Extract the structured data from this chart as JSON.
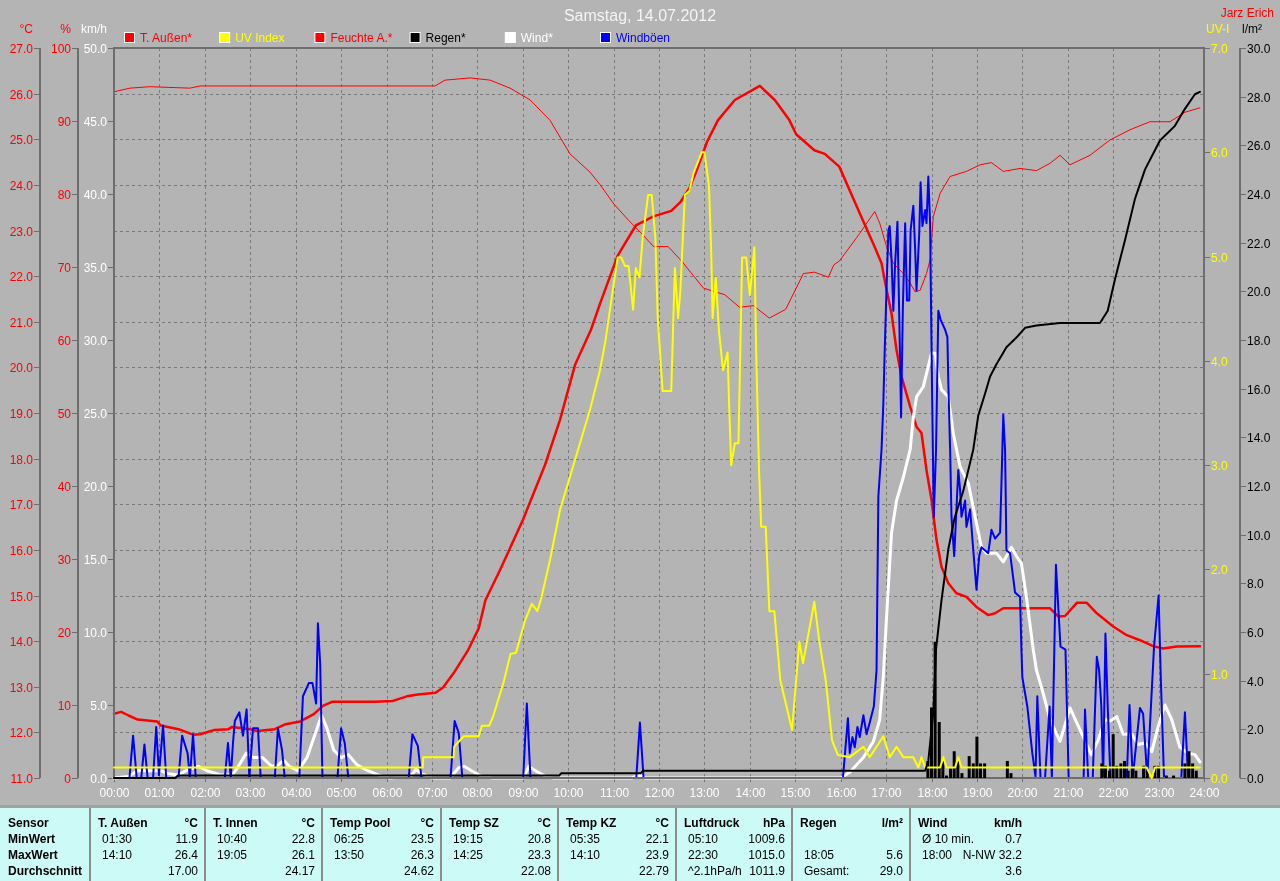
{
  "chart_data": [
    {
      "type": "line",
      "title": "Samstag, 14.07.2012",
      "annotations": [
        "Jarz Erich"
      ],
      "ylabel": "°C",
      "y2label": "%",
      "y3label": "km/h",
      "xlim": [
        0,
        24
      ],
      "xticks": [
        {
          "value": 0,
          "label": "00:00"
        },
        {
          "value": 1,
          "label": "01:00"
        },
        {
          "value": 2,
          "label": "02:00"
        },
        {
          "value": 3,
          "label": "03:00"
        },
        {
          "value": 4,
          "label": "04:00"
        },
        {
          "value": 5,
          "label": "05:00"
        },
        {
          "value": 6,
          "label": "06:00"
        },
        {
          "value": 7,
          "label": "07:00"
        },
        {
          "value": 8,
          "label": "08:00"
        },
        {
          "value": 9,
          "label": "09:00"
        },
        {
          "value": 10,
          "label": "10:00"
        },
        {
          "value": 11,
          "label": "11:00"
        },
        {
          "value": 12,
          "label": "12:00"
        },
        {
          "value": 13,
          "label": "13:00"
        },
        {
          "value": 14,
          "label": "14:00"
        },
        {
          "value": 15,
          "label": "15:00"
        },
        {
          "value": 16,
          "label": "16:00"
        },
        {
          "value": 17,
          "label": "17:00"
        },
        {
          "value": 18,
          "label": "18:00"
        },
        {
          "value": 19,
          "label": "19:00"
        },
        {
          "value": 20,
          "label": "20:00"
        },
        {
          "value": 21,
          "label": "21:00"
        },
        {
          "value": 22,
          "label": "22:00"
        },
        {
          "value": 23,
          "label": "23:00"
        },
        {
          "value": 24,
          "label": "24:00"
        }
      ],
      "ylim": [
        11,
        27
      ],
      "yticks": [
        {
          "value": 11,
          "label": "11.0"
        },
        {
          "value": 12,
          "label": "12.0"
        },
        {
          "value": 13,
          "label": "13.0"
        },
        {
          "value": 14,
          "label": "14.0"
        },
        {
          "value": 15,
          "label": "15.0"
        },
        {
          "value": 16,
          "label": "16.0"
        },
        {
          "value": 17,
          "label": "17.0"
        },
        {
          "value": 18,
          "label": "18.0"
        },
        {
          "value": 19,
          "label": "19.0"
        },
        {
          "value": 20,
          "label": "20.0"
        },
        {
          "value": 21,
          "label": "21.0"
        },
        {
          "value": 22,
          "label": "22.0"
        },
        {
          "value": 23,
          "label": "23.0"
        },
        {
          "value": 24,
          "label": "24.0"
        },
        {
          "value": 25,
          "label": "25.0"
        },
        {
          "value": 26,
          "label": "26.0"
        },
        {
          "value": 27,
          "label": "27.0"
        }
      ],
      "y2lim": [
        0,
        100
      ],
      "y2ticks": [
        0,
        10,
        20,
        30,
        40,
        50,
        60,
        70,
        80,
        90,
        100
      ],
      "y3lim": [
        0,
        50
      ],
      "y3ticks": [
        {
          "value": 0,
          "label": "0.0"
        },
        {
          "value": 5,
          "label": "5.0"
        },
        {
          "value": 10,
          "label": "10.0"
        },
        {
          "value": 15,
          "label": "15.0"
        },
        {
          "value": 20,
          "label": "20.0"
        },
        {
          "value": 25,
          "label": "25.0"
        },
        {
          "value": 30,
          "label": "30.0"
        },
        {
          "value": 35,
          "label": "35.0"
        },
        {
          "value": 40,
          "label": "40.0"
        },
        {
          "value": 45,
          "label": "45.0"
        },
        {
          "value": 50,
          "label": "50.0"
        }
      ],
      "grid": true,
      "legend": "top",
      "series": [
        {
          "name": "T. Außen*",
          "color": "#ff0000",
          "x": [
            0,
            0.16,
            0.32,
            0.52,
            0.95,
            1.03,
            1.42,
            1.74,
            1.89,
            2.2,
            2.52,
            2.6,
            3.0,
            3.15,
            3.54,
            3.78,
            4.1,
            4.4,
            4.6,
            4.8,
            5.35,
            5.74,
            6.14,
            6.45,
            6.69,
            7.08,
            7.24,
            7.48,
            7.8,
            8.03,
            8.18,
            8.5,
            9.0,
            9.49,
            9.82,
            10.15,
            10.5,
            10.7,
            11.09,
            11.49,
            11.88,
            12.27,
            12.47,
            12.67,
            12.82,
            13.06,
            13.3,
            13.67,
            14.22,
            14.55,
            14.87,
            15.02,
            15.42,
            15.65,
            15.97,
            16.42,
            16.75,
            16.9,
            17.01,
            17.12,
            17.23,
            17.34,
            17.53,
            17.67,
            17.78,
            17.89,
            18.0,
            18.11,
            18.22,
            18.37,
            18.55,
            18.77,
            18.99,
            19.25,
            19.4,
            19.58,
            19.95,
            20.61,
            20.79,
            20.94,
            21.2,
            21.42,
            21.64,
            22.0,
            22.3,
            22.59,
            22.88,
            23.1,
            23.4,
            23.91
          ],
          "values": [
            12.41,
            12.45,
            12.37,
            12.28,
            12.24,
            12.15,
            12.07,
            11.95,
            11.96,
            12.05,
            12.07,
            12.12,
            12.07,
            12.03,
            12.07,
            12.18,
            12.24,
            12.4,
            12.58,
            12.67,
            12.67,
            12.67,
            12.69,
            12.79,
            12.83,
            12.87,
            12.98,
            13.3,
            13.81,
            14.28,
            14.9,
            15.56,
            16.65,
            17.86,
            18.85,
            20.05,
            20.82,
            21.39,
            22.45,
            23.11,
            23.31,
            23.43,
            23.62,
            23.93,
            24.29,
            24.95,
            25.42,
            25.86,
            26.17,
            25.86,
            25.42,
            25.11,
            24.76,
            24.68,
            24.4,
            23.38,
            22.64,
            22.28,
            21.7,
            21.18,
            20.38,
            19.8,
            19.14,
            18.7,
            18.56,
            17.75,
            17.1,
            16.22,
            15.63,
            15.27,
            15.05,
            14.97,
            14.75,
            14.57,
            14.61,
            14.72,
            14.72,
            14.72,
            14.54,
            14.55,
            14.84,
            14.84,
            14.61,
            14.32,
            14.13,
            14.02,
            13.89,
            13.84,
            13.88,
            13.89
          ]
        },
        {
          "name": "Feuchte A.*",
          "color": "#ff0000",
          "axis": "y2",
          "x": [
            0,
            0.35,
            0.79,
            1.67,
            1.89,
            7.07,
            7.29,
            7.84,
            8.28,
            8.72,
            9.16,
            9.6,
            10.04,
            10.48,
            10.7,
            11.01,
            11.33,
            11.6,
            11.88,
            12.2,
            12.5,
            12.98,
            13.45,
            13.77,
            14.08,
            14.43,
            14.79,
            15.18,
            15.42,
            15.73,
            15.85,
            15.97,
            16.42,
            16.75,
            16.86,
            17.01,
            17.16,
            17.38,
            17.53,
            17.64,
            17.75,
            17.89,
            17.97,
            18.04,
            18.19,
            18.41,
            18.77,
            19.07,
            19.32,
            19.58,
            19.95,
            20.31,
            20.61,
            20.83,
            21.05,
            21.49,
            21.93,
            22.37,
            22.81,
            23.25,
            23.58,
            23.91
          ],
          "values": [
            94.0,
            94.5,
            94.7,
            94.5,
            94.8,
            94.8,
            95.6,
            95.9,
            95.6,
            94.5,
            92.9,
            90.1,
            85.5,
            83.0,
            81.3,
            78.6,
            76.4,
            74.7,
            72.8,
            72.8,
            70.8,
            67.1,
            66.2,
            64.5,
            64.7,
            63.0,
            64.2,
            69.1,
            69.3,
            68.6,
            70.3,
            70.8,
            74.6,
            77.6,
            76.0,
            72.8,
            70.5,
            69.1,
            67.8,
            66.6,
            66.8,
            69.1,
            71.0,
            76.9,
            80.1,
            82.4,
            83.1,
            84.0,
            84.3,
            83.1,
            83.5,
            83.2,
            84.2,
            85.3,
            84.0,
            85.3,
            87.4,
            88.8,
            89.9,
            89.9,
            91.2,
            91.8
          ]
        },
        {
          "name": "Wind*",
          "color": "#ffffff",
          "axis": "y3",
          "x": [
            0,
            0.32,
            0.52,
            1.03,
            1.19,
            1.42,
            1.58,
            1.85,
            2.05,
            2.36,
            2.6,
            2.72,
            2.91,
            3.07,
            3.27,
            3.47,
            3.62,
            3.74,
            3.86,
            4.05,
            4.25,
            4.45,
            4.57,
            4.69,
            4.84,
            5.0,
            5.16,
            5.35,
            5.59,
            5.83,
            6.06,
            6.53,
            6.65,
            6.77,
            7.0,
            7.4,
            7.59,
            7.71,
            7.87,
            8.1,
            8.34,
            9.02,
            9.13,
            9.28,
            9.51,
            9.68,
            11.4,
            11.55,
            11.7,
            16.0,
            16.2,
            16.5,
            16.72,
            16.86,
            16.94,
            17.01,
            17.12,
            17.23,
            17.38,
            17.53,
            17.6,
            17.67,
            17.82,
            17.89,
            18.0,
            18.08,
            18.15,
            18.22,
            18.37,
            18.48,
            18.63,
            18.81,
            18.96,
            19.1,
            19.21,
            19.43,
            19.58,
            19.76,
            19.87,
            19.98,
            20.09,
            20.24,
            20.31,
            20.46,
            20.61,
            20.83,
            21.05,
            21.27,
            21.52,
            21.67,
            21.82,
            21.93,
            22.08,
            22.22,
            22.41,
            22.55,
            22.7,
            22.85,
            22.99,
            23.14,
            23.29,
            23.47,
            23.65,
            23.8,
            23.91
          ],
          "values": [
            0,
            0.1,
            0.5,
            0.5,
            0.3,
            0.2,
            0.5,
            0.8,
            0.5,
            0.2,
            0.2,
            0.7,
            1.7,
            1.4,
            1.4,
            0.8,
            0.9,
            1.2,
            0.8,
            0.5,
            1.4,
            3.2,
            4.3,
            3.4,
            1.9,
            1.4,
            1.6,
            0.9,
            0.5,
            0.2,
            0,
            0.1,
            0.6,
            0.3,
            0,
            0,
            0.7,
            0.8,
            0.5,
            0.1,
            0,
            0,
            0.8,
            0.5,
            0.1,
            0,
            0,
            0.2,
            0,
            0,
            0.4,
            1.4,
            2.5,
            4.0,
            7.0,
            11.0,
            16.8,
            19.0,
            20.6,
            22.5,
            24.7,
            26.1,
            26.8,
            27.7,
            29.1,
            29.1,
            27.5,
            26.6,
            26.1,
            23.6,
            21.3,
            20.2,
            17.9,
            15.8,
            15.4,
            15.4,
            14.8,
            15.8,
            15.2,
            14.7,
            12.4,
            8.8,
            7.4,
            5.8,
            4.0,
            2.5,
            4.8,
            3.3,
            1.6,
            2.6,
            4.0,
            3.9,
            4.2,
            3.0,
            3.0,
            2.3,
            2.4,
            1.8,
            3.5,
            5.0,
            4.0,
            2.1,
            1.7,
            1.6,
            1.1
          ]
        },
        {
          "name": "Windböen",
          "color": "#0000ff",
          "axis": "y3",
          "x": [
            0,
            0.34,
            0.42,
            0.5,
            0.6,
            0.67,
            0.74,
            0.86,
            0.93,
            0.99,
            1.08,
            1.15,
            1.42,
            1.5,
            1.62,
            1.67,
            1.74,
            1.8,
            2.44,
            2.51,
            2.57,
            2.62,
            2.66,
            2.76,
            2.84,
            2.92,
            2.98,
            3.06,
            3.17,
            3.23,
            3.54,
            3.61,
            3.7,
            3.76,
            4.08,
            4.16,
            4.29,
            4.37,
            4.45,
            4.49,
            4.54,
            4.59,
            4.92,
            5.0,
            5.08,
            5.16,
            6.49,
            6.57,
            6.69,
            6.77,
            7.41,
            7.5,
            7.59,
            7.67,
            9.01,
            9.09,
            9.17,
            11.5,
            11.58,
            11.66,
            16.05,
            16.16,
            16.2,
            16.26,
            16.31,
            16.37,
            16.42,
            16.5,
            16.57,
            16.64,
            16.73,
            16.79,
            16.83,
            16.9,
            16.94,
            16.97,
            17.0,
            17.05,
            17.08,
            17.12,
            17.16,
            17.2,
            17.25,
            17.29,
            17.33,
            17.37,
            17.42,
            17.46,
            17.51,
            17.54,
            17.6,
            17.64,
            17.67,
            17.73,
            17.76,
            17.8,
            17.86,
            17.89,
            17.93,
            17.97,
            17.99,
            18.01,
            18.05,
            18.1,
            18.15,
            18.2,
            18.3,
            18.35,
            18.37,
            18.41,
            18.44,
            18.5,
            18.59,
            18.63,
            18.66,
            18.74,
            18.77,
            18.85,
            18.92,
            18.99,
            19.05,
            19.1,
            19.25,
            19.32,
            19.4,
            19.51,
            19.55,
            19.58,
            19.62,
            19.65,
            19.73,
            19.84,
            19.95,
            19.98,
            20.0,
            20.11,
            20.22,
            20.29,
            20.33,
            20.4,
            20.5,
            20.6,
            20.65,
            20.74,
            20.84,
            20.95,
            21.02,
            21.35,
            21.38,
            21.45,
            21.55,
            21.64,
            21.69,
            21.74,
            21.78,
            21.83,
            21.88,
            21.94,
            22.3,
            22.36,
            22.43,
            22.59,
            22.66,
            22.75,
            22.9,
            23.0,
            23.05,
            23.12,
            23.5,
            23.58,
            23.65,
            23.91
          ],
          "values": [
            0,
            0,
            2.9,
            0,
            0,
            2.3,
            0,
            0,
            3.5,
            0.2,
            3.6,
            0,
            0,
            2.9,
            1.7,
            0,
            3.0,
            0,
            0,
            2.4,
            0,
            2.4,
            3.9,
            4.5,
            2.9,
            4.7,
            0,
            3.4,
            3.4,
            0,
            0,
            3.4,
            1.9,
            0,
            0,
            5.6,
            6.5,
            6.5,
            5.1,
            10.6,
            7.8,
            0,
            0,
            3.4,
            2.4,
            0,
            0,
            3.0,
            2.2,
            0,
            0,
            3.9,
            3.1,
            0,
            0,
            5.1,
            0,
            0,
            3.8,
            0,
            0,
            4.1,
            1.7,
            2.8,
            2.1,
            3.5,
            2.8,
            4.3,
            3.0,
            3.8,
            4.9,
            7.4,
            19.3,
            22.5,
            25.7,
            29.3,
            32.5,
            37.5,
            37.8,
            35.5,
            32.0,
            35.3,
            38.1,
            31.6,
            24.7,
            32.3,
            38.0,
            32.7,
            32.7,
            37.5,
            39.2,
            36.2,
            33.4,
            37.3,
            40.8,
            37.8,
            38.9,
            38.0,
            41.2,
            37.9,
            32.3,
            27.1,
            17.9,
            22.5,
            32.0,
            31.4,
            30.7,
            30.2,
            27.1,
            22.5,
            17.9,
            15.2,
            21.1,
            19.7,
            17.9,
            19.0,
            17.2,
            18.4,
            15.6,
            12.9,
            15.2,
            15.8,
            15.4,
            17.0,
            16.4,
            16.8,
            21.3,
            24.9,
            22.5,
            15.6,
            15.4,
            12.7,
            12.4,
            8.8,
            6.9,
            4.9,
            1.7,
            0.1,
            5.6,
            0,
            0,
            4.9,
            0,
            14.6,
            9.0,
            8.8,
            0,
            0,
            4.7,
            0,
            0,
            8.3,
            7.4,
            4.9,
            0,
            9.9,
            4.9,
            0,
            0,
            5.0,
            0,
            4.8,
            4.4,
            0,
            9.0,
            12.5,
            6.7,
            0,
            0,
            4.5,
            0,
            0
          ]
        }
      ]
    },
    {
      "type": "line",
      "ylabel": "UV-I",
      "y2label": "l/m²",
      "xlim": [
        0,
        24
      ],
      "tick_labels": "y",
      "legend": "top",
      "ylim": [
        0,
        7
      ],
      "yticks": [
        {
          "value": 0,
          "label": "0.0"
        },
        {
          "value": 1,
          "label": "1.0"
        },
        {
          "value": 2,
          "label": "2.0"
        },
        {
          "value": 3,
          "label": "3.0"
        },
        {
          "value": 4,
          "label": "4.0"
        },
        {
          "value": 5,
          "label": "5.0"
        },
        {
          "value": 6,
          "label": "6.0"
        },
        {
          "value": 7,
          "label": "7.0"
        }
      ],
      "y2lim": [
        0,
        30
      ],
      "y2ticks": [
        {
          "value": 0,
          "label": "0.0"
        },
        {
          "value": 2,
          "label": "2.0"
        },
        {
          "value": 4,
          "label": "4.0"
        },
        {
          "value": 6,
          "label": "6.0"
        },
        {
          "value": 8,
          "label": "8.0"
        },
        {
          "value": 10,
          "label": "10.0"
        },
        {
          "value": 12,
          "label": "12.0"
        },
        {
          "value": 14,
          "label": "14.0"
        },
        {
          "value": 16,
          "label": "16.0"
        },
        {
          "value": 18,
          "label": "18.0"
        },
        {
          "value": 20,
          "label": "20.0"
        },
        {
          "value": 22,
          "label": "22.0"
        },
        {
          "value": 24,
          "label": "24.0"
        },
        {
          "value": 26,
          "label": "26.0"
        },
        {
          "value": 28,
          "label": "28.0"
        },
        {
          "value": 30,
          "label": "30.0"
        }
      ],
      "series": [
        {
          "name": "UV Index",
          "color": "#ffff00",
          "x": [
            0,
            6.8,
            6.81,
            7.48,
            7.49,
            7.7,
            8.03,
            8.1,
            8.26,
            8.34,
            8.58,
            8.73,
            8.85,
            9.05,
            9.2,
            9.32,
            9.4,
            9.6,
            9.82,
            10.15,
            10.48,
            10.7,
            10.82,
            10.98,
            11.09,
            11.17,
            11.25,
            11.33,
            11.43,
            11.49,
            11.57,
            11.64,
            11.76,
            11.84,
            11.92,
            11.97,
            12.08,
            12.27,
            12.31,
            12.35,
            12.42,
            12.47,
            12.57,
            12.67,
            12.76,
            12.94,
            13.0,
            13.1,
            13.15,
            13.18,
            13.25,
            13.32,
            13.41,
            13.51,
            13.55,
            13.59,
            13.67,
            13.75,
            13.83,
            13.92,
            14.0,
            14.1,
            14.14,
            14.2,
            14.25,
            14.35,
            14.43,
            14.54,
            14.67,
            14.93,
            15.02,
            15.09,
            15.17,
            15.26,
            15.42,
            15.53,
            15.67,
            15.81,
            15.94,
            16.2,
            16.5,
            16.64,
            16.94,
            17.08,
            17.23,
            17.38,
            17.6,
            17.71,
            17.78,
            17.86,
            18.19,
            18.26,
            18.33,
            18.52,
            18.59,
            18.66,
            22.74,
            22.85,
            22.92,
            23.91
          ],
          "values": [
            0.1,
            0.1,
            0.2,
            0.2,
            0.3,
            0.4,
            0.4,
            0.5,
            0.5,
            0.58,
            0.92,
            1.19,
            1.2,
            1.51,
            1.67,
            1.6,
            1.71,
            2.09,
            2.57,
            3.05,
            3.53,
            3.91,
            4.19,
            4.67,
            4.99,
            4.99,
            4.91,
            4.91,
            4.49,
            4.89,
            4.8,
            5.18,
            5.59,
            5.59,
            5.18,
            4.43,
            3.71,
            3.71,
            4.32,
            4.89,
            4.41,
            4.67,
            5.59,
            5.63,
            5.8,
            6.0,
            6.0,
            5.68,
            5.04,
            4.41,
            4.8,
            4.29,
            3.91,
            4.08,
            3.5,
            3.0,
            3.21,
            3.21,
            4.99,
            4.99,
            4.63,
            5.09,
            4.08,
            2.99,
            2.41,
            2.41,
            1.6,
            1.6,
            0.94,
            0.46,
            0.94,
            1.31,
            1.1,
            1.31,
            1.69,
            1.31,
            0.94,
            0.36,
            0.22,
            0.2,
            0.3,
            0.2,
            0.4,
            0.2,
            0.3,
            0.2,
            0.2,
            0.1,
            0.2,
            0.1,
            0.1,
            0.2,
            0.1,
            0.1,
            0.2,
            0.1,
            0.1,
            0.0,
            0.1,
            0.1
          ]
        },
        {
          "name": "Regen*",
          "color": "#000000",
          "axis": "y2",
          "x": [
            0,
            1.35,
            1.4,
            9.8,
            9.85,
            11.6,
            11.65,
            17.86,
            17.93,
            18.04,
            18.1,
            18.22,
            18.37,
            18.51,
            18.7,
            18.92,
            19.03,
            19.18,
            19.29,
            19.43,
            19.65,
            19.87,
            20.06,
            20.31,
            20.83,
            21.27,
            21.71,
            21.88,
            22.04,
            22.26,
            22.48,
            22.7,
            23.03,
            23.36,
            23.58,
            23.8,
            23.91
          ],
          "values": [
            0,
            0,
            0.1,
            0.1,
            0.2,
            0.2,
            0.3,
            0.3,
            0.7,
            2.7,
            5.3,
            7.3,
            9.4,
            10.7,
            11.8,
            13.5,
            14.9,
            15.8,
            16.5,
            17.0,
            17.7,
            18.1,
            18.5,
            18.6,
            18.7,
            18.7,
            18.7,
            19.2,
            20.5,
            22.1,
            23.8,
            25.0,
            26.2,
            26.8,
            27.5,
            28.1,
            28.2
          ]
        },
        {
          "type": "bar",
          "color": "#000000",
          "axis": "y2",
          "x": [
            17.92,
            18.0,
            18.08,
            18.17,
            18.25,
            18.33,
            18.42,
            18.5,
            18.58,
            18.67,
            18.83,
            18.92,
            19.0,
            19.08,
            19.17,
            19.67,
            19.75,
            21.75,
            21.83,
            21.92,
            22.0,
            22.08,
            22.17,
            22.25,
            22.33,
            22.42,
            22.5,
            22.67,
            22.75,
            22.92,
            23.0,
            23.17,
            23.33,
            23.58,
            23.67,
            23.75,
            23.83
          ],
          "values": [
            0.7,
            2.9,
            5.6,
            2.3,
            0.7,
            0.1,
            0.4,
            1.1,
            0.7,
            0.2,
            0.9,
            0.6,
            1.7,
            0.6,
            0.6,
            0.7,
            0.2,
            0.6,
            0.5,
            0.3,
            1.8,
            0.5,
            0.6,
            0.7,
            0.3,
            0.4,
            0.3,
            0.5,
            0.3,
            0.5,
            0.5,
            0.1,
            0.1,
            0.6,
            1.1,
            0.6,
            0.3
          ]
        }
      ]
    },
    {
      "type": "other",
      "annotations": [
        "Sensor",
        "T. Außen",
        "°C",
        "T. Innen",
        "°C",
        "Temp Pool",
        "°C",
        "Temp SZ",
        "°C",
        "Temp KZ",
        "°C",
        "Luftdruck",
        "hPa",
        "Regen",
        "l/m²",
        "Wind",
        "km/h",
        "MinWert",
        "01:30",
        "11.9",
        "10:40",
        "22.8",
        "06:25",
        "23.5",
        "19:15",
        "20.8",
        "05:35",
        "22.1",
        "05:10",
        "1009.6",
        "Ø 10 min.",
        "0.7",
        "MaxWert",
        "14:10",
        "26.4",
        "19:05",
        "26.1",
        "13:50",
        "26.3",
        "14:25",
        "23.3",
        "14:10",
        "23.9",
        "22:30",
        "1015.0",
        "18:05",
        "5.6",
        "18:00",
        "N-NW 32.2",
        "Durchschnitt",
        "17.00",
        "24.17",
        "24.62",
        "22.08",
        "22.79",
        "^2.1hPa/h",
        "1011.9",
        "Gesamt:",
        "29.0",
        "3.6"
      ]
    }
  ]
}
